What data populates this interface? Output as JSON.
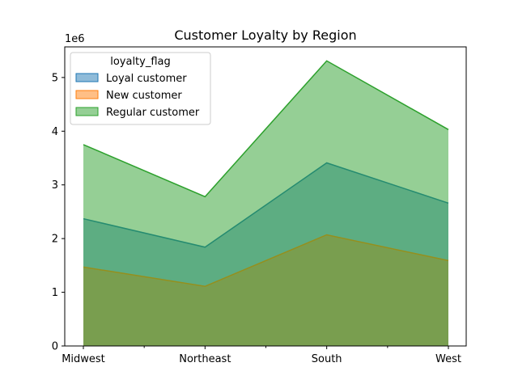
{
  "chart_data": {
    "type": "area",
    "title": "Customer Loyalty by Region",
    "xlabel": "",
    "ylabel": "",
    "y_offset_label": "1e6",
    "categories": [
      "Midwest",
      "Northeast",
      "South",
      "West"
    ],
    "ylim": [
      0,
      5570000
    ],
    "y_ticks": [
      0,
      1,
      2,
      3,
      4,
      5
    ],
    "y_tick_multiplier": 1000000,
    "stacked": false,
    "legend": {
      "title": "loyalty_flag",
      "placement": "top-left"
    },
    "grid": false,
    "series": [
      {
        "name": "Loyal customer",
        "values": [
          2370000,
          1840000,
          3410000,
          2660000
        ],
        "color": "#1f77b4"
      },
      {
        "name": "New customer",
        "values": [
          1470000,
          1110000,
          2070000,
          1590000
        ],
        "color": "#ff7f0e"
      },
      {
        "name": "Regular customer",
        "values": [
          3750000,
          2780000,
          5310000,
          4030000
        ],
        "color": "#2ca02c"
      }
    ]
  }
}
